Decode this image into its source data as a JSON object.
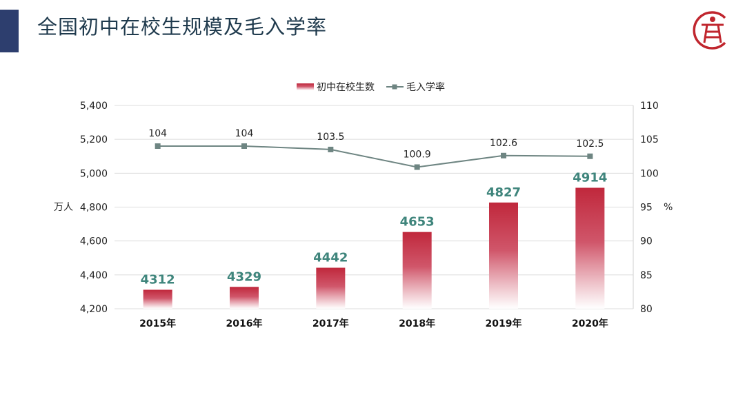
{
  "title": "全国初中在校生规模及毛入学率",
  "logo": {
    "name": "education-ladder-logo",
    "color": "#c0262e"
  },
  "chart_data": {
    "type": "bar+line",
    "categories": [
      "2015年",
      "2016年",
      "2017年",
      "2018年",
      "2019年",
      "2020年"
    ],
    "series": [
      {
        "name": "初中在校生数",
        "type": "bar",
        "axis": "left",
        "values": [
          4312,
          4329,
          4442,
          4653,
          4827,
          4914
        ],
        "color": "#c0283c",
        "label_color": "#3f857c"
      },
      {
        "name": "毛入学率",
        "type": "line",
        "axis": "right",
        "values": [
          104,
          104,
          103.5,
          100.9,
          102.6,
          102.5
        ],
        "color": "#6e8582"
      }
    ],
    "left_axis": {
      "label": "万人",
      "range": [
        4200,
        5400
      ],
      "ticks": [
        "4,200",
        "4,400",
        "4,600",
        "4,800",
        "5,000",
        "5,200",
        "5,400"
      ]
    },
    "right_axis": {
      "label": "%",
      "range": [
        80,
        110
      ],
      "ticks": [
        "80",
        "85",
        "90",
        "95",
        "100",
        "105",
        "110"
      ]
    },
    "grid": true,
    "legend": "top-center"
  }
}
